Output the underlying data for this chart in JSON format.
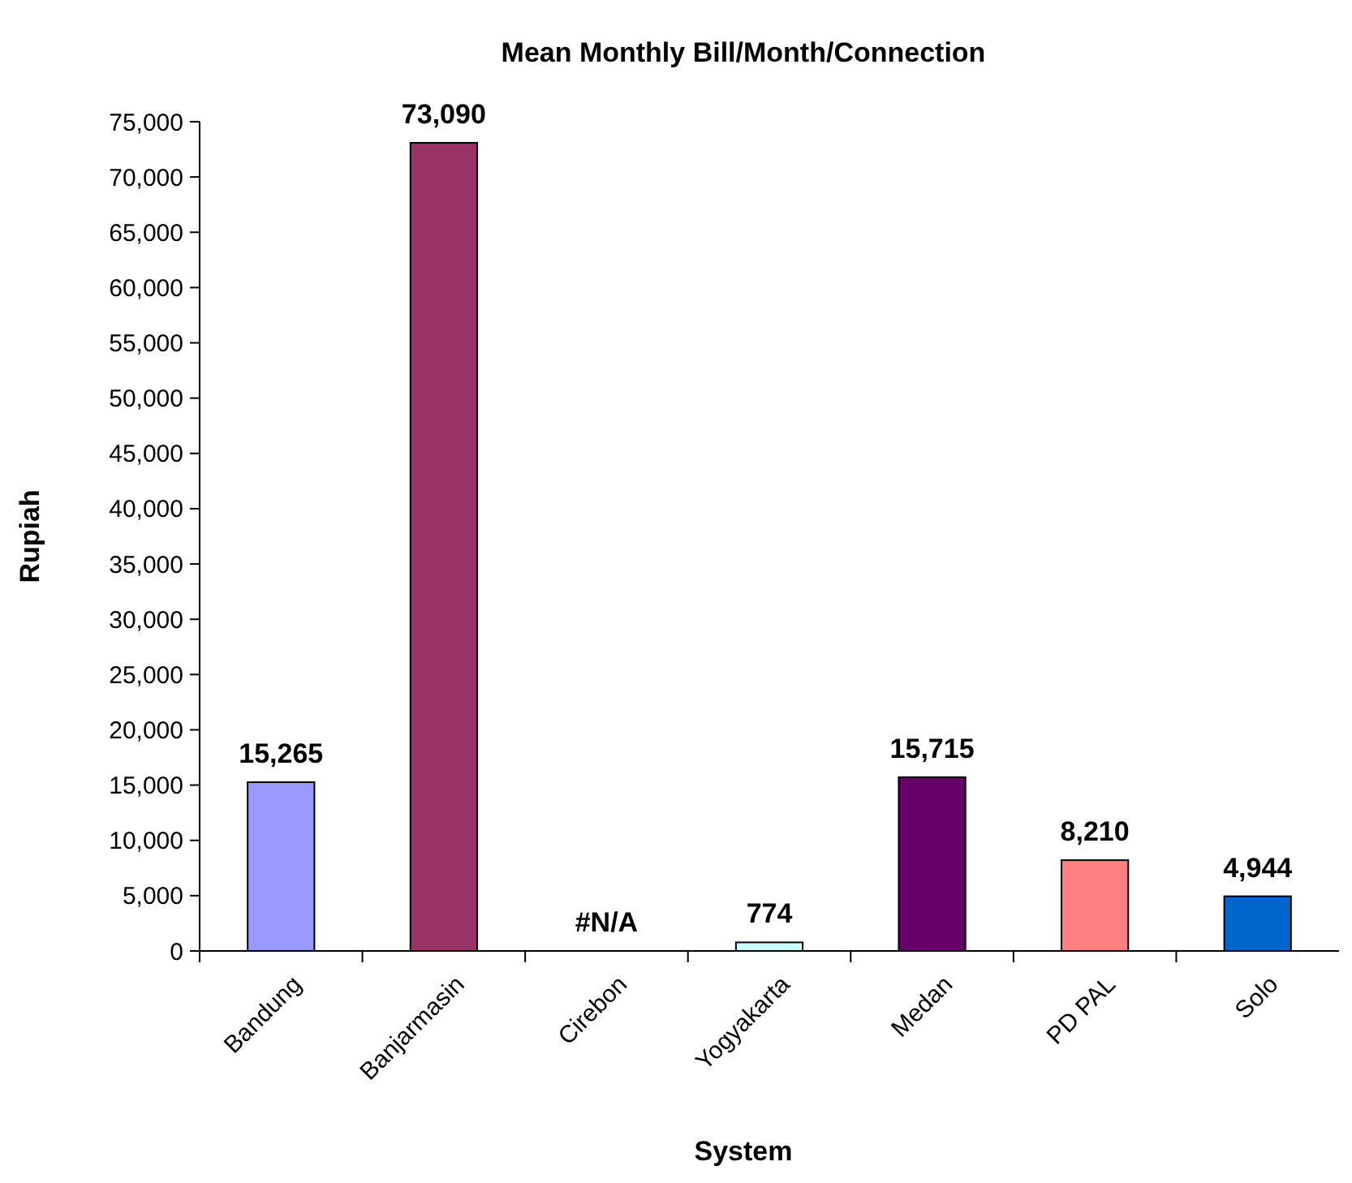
{
  "chart_data": {
    "type": "bar",
    "title": "Mean Monthly Bill/Month/Connection",
    "xlabel": "System",
    "ylabel": "Rupiah",
    "categories": [
      "Bandung",
      "Banjarmasin",
      "Cirebon",
      "Yogyakarta",
      "Medan",
      "PD PAL",
      "Solo"
    ],
    "values": [
      15265,
      73090,
      null,
      774,
      15715,
      8210,
      4944
    ],
    "colors": [
      "#9999ff",
      "#993366",
      null,
      "#ccffff",
      "#660066",
      "#ff8080",
      "#0066cc"
    ],
    "value_labels": [
      "15,265",
      "73,090",
      "#N/A",
      "774",
      "15,715",
      "8,210",
      "4,944"
    ],
    "ylim": [
      0,
      75000
    ],
    "yticks": [
      {
        "value": 0,
        "label": "0"
      },
      {
        "value": 5000,
        "label": "5,000"
      },
      {
        "value": 10000,
        "label": "10,000"
      },
      {
        "value": 15000,
        "label": "15,000"
      },
      {
        "value": 20000,
        "label": "20,000"
      },
      {
        "value": 25000,
        "label": "25,000"
      },
      {
        "value": 30000,
        "label": "30,000"
      },
      {
        "value": 35000,
        "label": "35,000"
      },
      {
        "value": 40000,
        "label": "40,000"
      },
      {
        "value": 45000,
        "label": "45,000"
      },
      {
        "value": 50000,
        "label": "50,000"
      },
      {
        "value": 55000,
        "label": "55,000"
      },
      {
        "value": 60000,
        "label": "60,000"
      },
      {
        "value": 65000,
        "label": "65,000"
      },
      {
        "value": 70000,
        "label": "70,000"
      },
      {
        "value": 75000,
        "label": "75,000"
      }
    ],
    "grid": false
  }
}
